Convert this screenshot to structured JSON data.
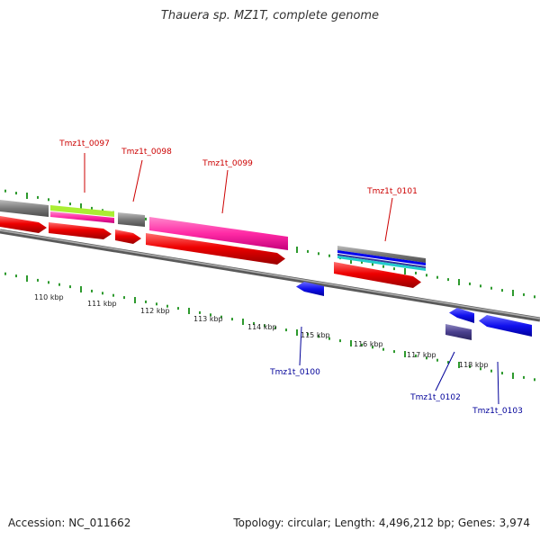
{
  "title": "Thauera sp. MZ1T, complete genome",
  "footer": {
    "accession": "Accession: NC_011662",
    "topology": "Topology: circular; Length: 4,496,212 bp; Genes: 3,974"
  },
  "colors": {
    "background": "#ffffff",
    "backbone": "#8c8c8c",
    "tick": "#2e9a2e",
    "forward_label": "#cc0000",
    "reverse_label": "#000099",
    "cds": "#ee0000",
    "gene_gray": "#808080",
    "gene_pink": "#ff33aa",
    "gene_green": "#aaee33",
    "gene_blue": "#0000ee",
    "gene_cyan": "#22cccc",
    "gene_navy": "#443388"
  },
  "scale_labels": [
    "110 kbp",
    "111 kbp",
    "112 kbp",
    "113 kbp",
    "114 kbp",
    "115 kbp",
    "116 kbp",
    "117 kbp",
    "118 kbp"
  ],
  "forward_genes": [
    "Tmz1t_0097",
    "Tmz1t_0098",
    "Tmz1t_0099",
    "Tmz1t_0101"
  ],
  "reverse_genes": [
    "Tmz1t_0100",
    "Tmz1t_0102",
    "Tmz1t_0103"
  ]
}
